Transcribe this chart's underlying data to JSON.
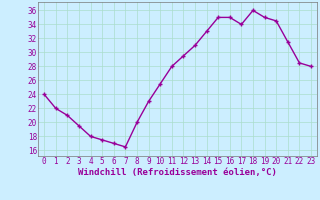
{
  "x": [
    0,
    1,
    2,
    3,
    4,
    5,
    6,
    7,
    8,
    9,
    10,
    11,
    12,
    13,
    14,
    15,
    16,
    17,
    18,
    19,
    20,
    21,
    22,
    23
  ],
  "y": [
    24,
    22,
    21,
    19.5,
    18,
    17.5,
    17,
    16.5,
    20,
    23,
    25.5,
    28,
    29.5,
    31,
    33,
    35,
    35,
    34,
    36,
    35,
    34.5,
    31.5,
    28.5,
    28
  ],
  "line_color": "#990099",
  "marker": "+",
  "marker_size": 3,
  "bg_color": "#cceeff",
  "grid_color": "#aaddcc",
  "xlabel": "Windchill (Refroidissement éolien,°C)",
  "xlabel_color": "#990099",
  "xlabel_fontsize": 6.5,
  "xtick_labels": [
    "0",
    "1",
    "2",
    "3",
    "4",
    "5",
    "6",
    "7",
    "8",
    "9",
    "10",
    "11",
    "12",
    "13",
    "14",
    "15",
    "16",
    "17",
    "18",
    "19",
    "20",
    "21",
    "22",
    "23"
  ],
  "ytick_vals": [
    16,
    18,
    20,
    22,
    24,
    26,
    28,
    30,
    32,
    34,
    36
  ],
  "ytick_labels": [
    "16",
    "18",
    "20",
    "22",
    "24",
    "26",
    "28",
    "30",
    "32",
    "34",
    "36"
  ],
  "ylim": [
    15.2,
    37.2
  ],
  "xlim": [
    -0.5,
    23.5
  ],
  "tick_color": "#990099",
  "tick_fontsize": 5.5,
  "line_width": 1.0,
  "spine_color": "#777777"
}
